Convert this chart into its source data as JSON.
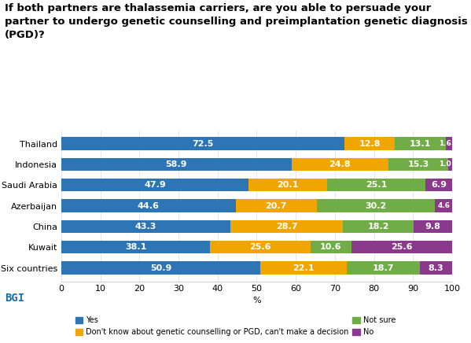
{
  "title": "If both partners are thalassemia carriers, are you able to persuade your\npartner to undergo genetic counselling and preimplantation genetic diagnosis\n(PGD)?",
  "categories": [
    "Thailand",
    "Indonesia",
    "Saudi Arabia",
    "Azerbaijan",
    "China",
    "Kuwait",
    "Six countries"
  ],
  "series": {
    "Yes": [
      72.5,
      58.9,
      47.9,
      44.6,
      43.3,
      38.1,
      50.9
    ],
    "Don't know": [
      12.8,
      24.8,
      20.1,
      20.7,
      28.7,
      25.6,
      22.1
    ],
    "Not sure": [
      13.1,
      15.3,
      25.1,
      30.2,
      18.2,
      10.6,
      18.7
    ],
    "No": [
      1.6,
      1.0,
      6.9,
      4.6,
      9.8,
      25.6,
      8.3
    ]
  },
  "colors": {
    "Yes": "#2E75B6",
    "Don't know": "#F0A500",
    "Not sure": "#70AD47",
    "No": "#8B3A8B"
  },
  "legend_labels": [
    "Yes",
    "Don't know about genetic counselling or PGD, can't make a decision",
    "Not sure",
    "No"
  ],
  "xlabel": "%",
  "xlim": [
    0,
    100
  ],
  "xticks": [
    0,
    10,
    20,
    30,
    40,
    50,
    60,
    70,
    80,
    90,
    100
  ],
  "background_color": "#FFFFFF",
  "bar_height": 0.62,
  "title_fontsize": 9.5,
  "tick_fontsize": 8,
  "label_fontsize": 8.0,
  "bgi_color": "#1A6FA8"
}
